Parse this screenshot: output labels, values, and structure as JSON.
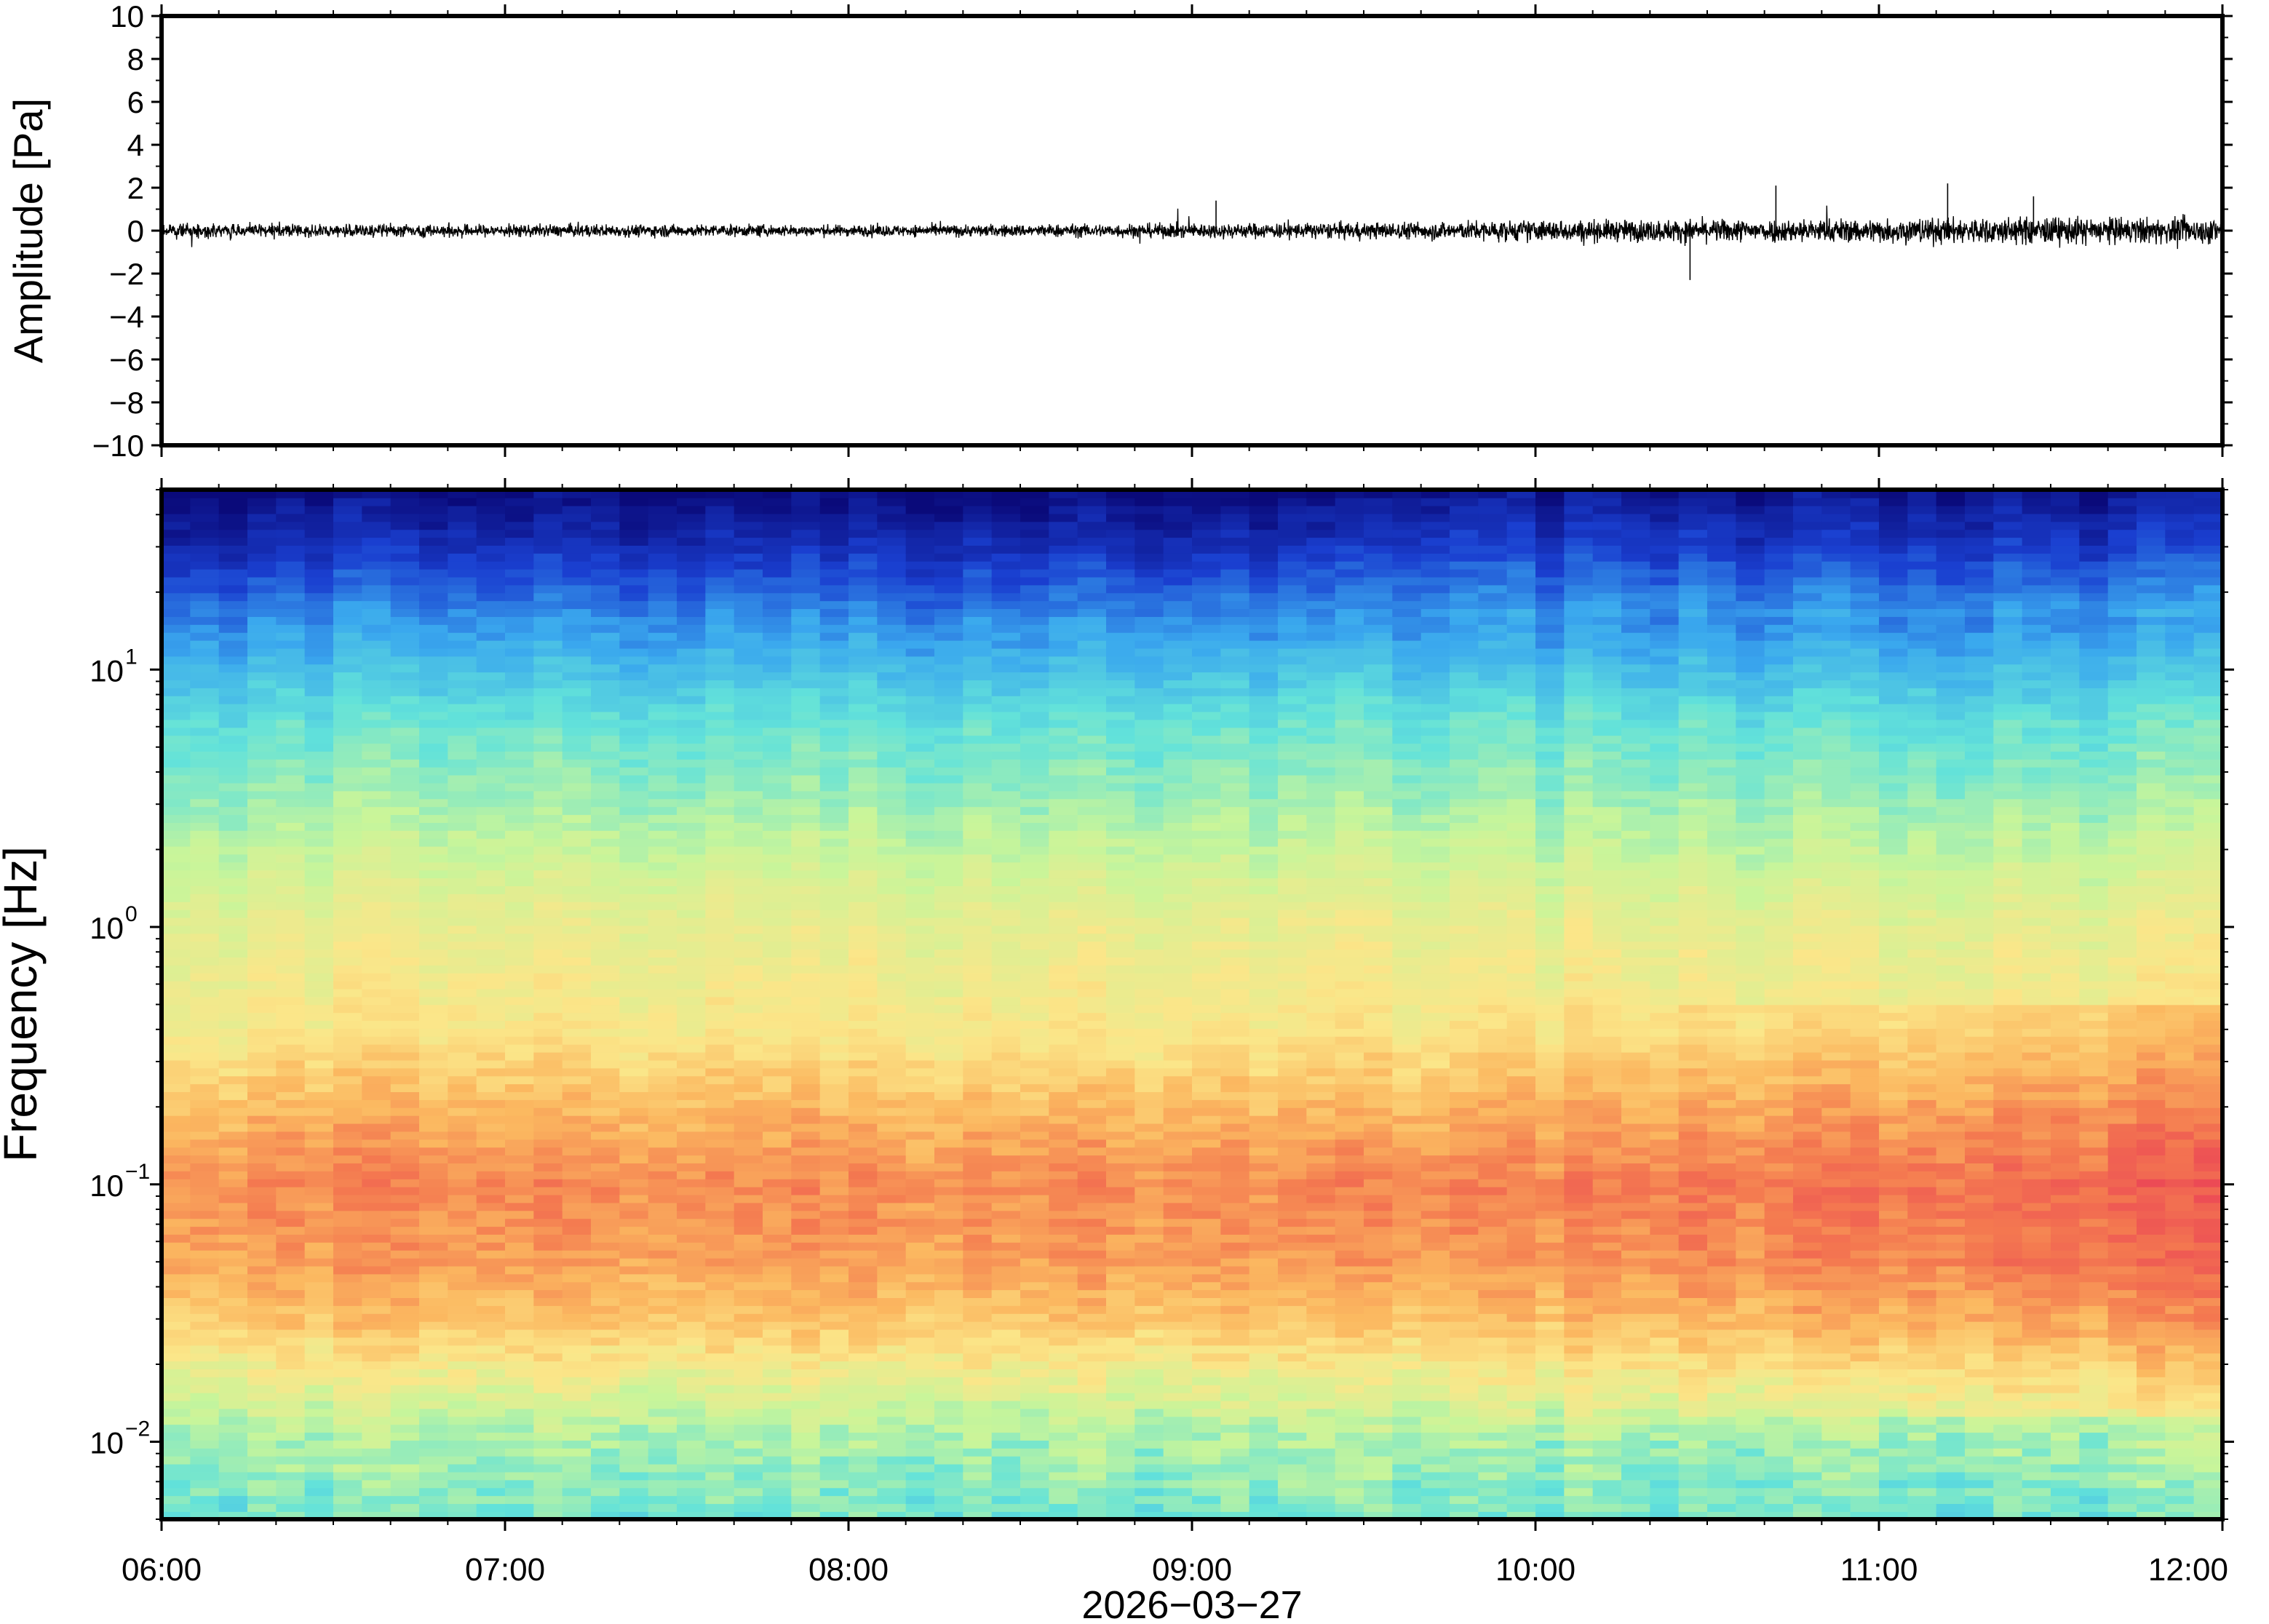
{
  "chart_data": [
    {
      "type": "line",
      "panel": "waveform",
      "ylabel": "Amplitude [Pa]",
      "ylim": [
        -10,
        10
      ],
      "yticks": [
        10,
        8,
        6,
        4,
        2,
        0,
        -2,
        -4,
        -6,
        -8,
        -10
      ],
      "ytick_labels": [
        "10",
        "8",
        "6",
        "4",
        "2",
        "0",
        "−2",
        "−4",
        "−6",
        "−8",
        "−10"
      ],
      "x_start": "06:00",
      "x_end": "12:00",
      "series": [
        {
          "color": "#000000",
          "note_envelope_hours": [
            6.0,
            6.5,
            7.0,
            7.5,
            8.0,
            8.5,
            9.0,
            9.5,
            10.0,
            10.5,
            11.0,
            11.5,
            12.0
          ],
          "values": [
            0.5,
            0.55,
            0.5,
            0.5,
            0.45,
            0.5,
            0.6,
            0.65,
            0.85,
            0.9,
            1.0,
            1.1,
            1.0
          ]
        }
      ],
      "peaks": [
        {
          "hour": 9.07,
          "value": 1.4
        },
        {
          "hour": 10.45,
          "value": -2.3
        },
        {
          "hour": 10.7,
          "value": 2.1
        },
        {
          "hour": 11.2,
          "value": 2.2
        },
        {
          "hour": 11.45,
          "value": 1.6
        }
      ]
    },
    {
      "type": "heatmap",
      "panel": "spectrogram",
      "ylabel": "Frequency [Hz]",
      "yscale": "log",
      "ylim": [
        0.005,
        50
      ],
      "yticks": [
        {
          "value": 10,
          "base": "10",
          "exp": "1"
        },
        {
          "value": 1,
          "base": "10",
          "exp": "0"
        },
        {
          "value": 0.1,
          "base": "10",
          "exp": "−1"
        },
        {
          "value": 0.01,
          "base": "10",
          "exp": "−2"
        }
      ],
      "xlabel": "2026−03−27",
      "xlim": [
        "06:00",
        "12:00"
      ],
      "xtick_labels": [
        "06:00",
        "07:00",
        "08:00",
        "09:00",
        "10:00",
        "11:00",
        "12:00"
      ],
      "colormap": [
        "#0a0a7a",
        "#1a3fd0",
        "#3aa8ee",
        "#62e2da",
        "#c8f59a",
        "#fbe689",
        "#fbb860",
        "#f47a50",
        "#ec4a55"
      ],
      "columns": 72,
      "frequency_bins": 130
    }
  ]
}
